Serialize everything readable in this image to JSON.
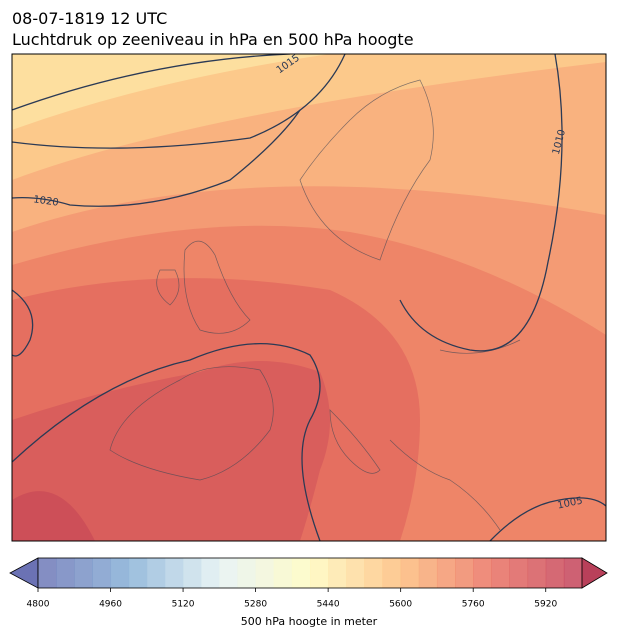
{
  "header": {
    "datetime": "08-07-1819 12 UTC",
    "title": "Luchtdruk op zeeniveau in hPa en 500 hPa hoogte"
  },
  "map": {
    "isobar_labels": [
      1015,
      1010,
      1020,
      1005
    ]
  },
  "colorbar": {
    "label": "500 hPa hoogte in meter",
    "lim": [
      4800,
      6000
    ],
    "ticks": [
      4800,
      4960,
      5120,
      5280,
      5440,
      5600,
      5760,
      5920
    ]
  }
}
